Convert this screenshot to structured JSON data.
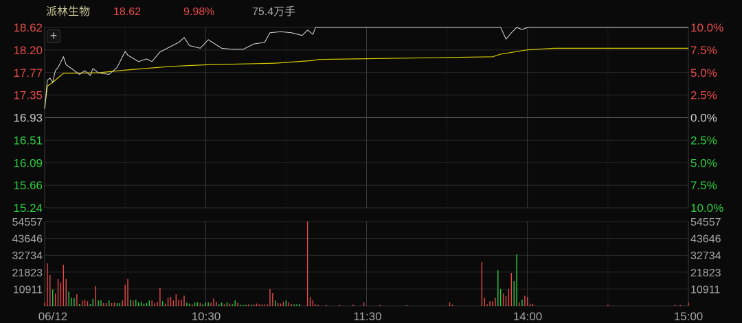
{
  "header": {
    "stock_name": "派林生物",
    "price": "18.62",
    "change_pct": "9.98%",
    "volume": "75.4万手"
  },
  "crosshair_button": {
    "icon": "plus-icon",
    "label": "+"
  },
  "colors": {
    "background": "#0a0a0a",
    "grid": "#2c2c2c",
    "up": "#e84a4a",
    "down": "#2ecc40",
    "price_line": "#dddddd",
    "avg_line": "#d9cc00",
    "name": "#c9c79a",
    "neutral": "#a8a8a8"
  },
  "chart_data": [
    {
      "type": "line",
      "panel": "price",
      "ylim": [
        15.24,
        18.62
      ],
      "grid": true,
      "y_ticks_left": [
        "18.62",
        "18.20",
        "17.77",
        "17.35",
        "16.93",
        "16.51",
        "16.09",
        "15.66",
        "15.24"
      ],
      "y_ticks_right": [
        "10.0%",
        "7.5%",
        "5.0%",
        "2.5%",
        "0.0%",
        "2.5%",
        "5.0%",
        "7.5%",
        "10.0%"
      ],
      "prev_close": 16.93,
      "x_ticks": [
        "06/12",
        "10:30",
        "11:30",
        "14:00",
        "15:00"
      ],
      "series": [
        {
          "key": "price",
          "points": [
            [
              "09:30",
              17.1
            ],
            [
              "09:31",
              17.63
            ],
            [
              "09:32",
              17.67
            ],
            [
              "09:33",
              17.59
            ],
            [
              "09:34",
              17.81
            ],
            [
              "09:35",
              17.87
            ],
            [
              "09:37",
              18.07
            ],
            [
              "09:38",
              17.92
            ],
            [
              "09:40",
              17.85
            ],
            [
              "09:43",
              17.74
            ],
            [
              "09:45",
              17.81
            ],
            [
              "09:47",
              17.72
            ],
            [
              "09:48",
              17.85
            ],
            [
              "09:50",
              17.77
            ],
            [
              "09:54",
              17.74
            ],
            [
              "09:57",
              17.87
            ],
            [
              "10:00",
              18.17
            ],
            [
              "10:01",
              18.1
            ],
            [
              "10:05",
              17.98
            ],
            [
              "10:08",
              18.03
            ],
            [
              "10:10",
              17.98
            ],
            [
              "10:13",
              18.16
            ],
            [
              "10:20",
              18.34
            ],
            [
              "10:22",
              18.43
            ],
            [
              "10:24",
              18.28
            ],
            [
              "10:28",
              18.23
            ],
            [
              "10:31",
              18.39
            ],
            [
              "10:36",
              18.23
            ],
            [
              "10:40",
              18.21
            ],
            [
              "10:44",
              18.21
            ],
            [
              "10:48",
              18.31
            ],
            [
              "10:52",
              18.34
            ],
            [
              "10:54",
              18.52
            ],
            [
              "10:58",
              18.54
            ],
            [
              "11:02",
              18.52
            ],
            [
              "11:06",
              18.47
            ],
            [
              "11:08",
              18.57
            ],
            [
              "11:10",
              18.49
            ],
            [
              "11:11",
              18.62
            ],
            [
              "13:50",
              18.62
            ],
            [
              "13:52",
              18.4
            ],
            [
              "13:54",
              18.52
            ],
            [
              "13:56",
              18.62
            ],
            [
              "13:58",
              18.58
            ],
            [
              "14:00",
              18.62
            ],
            [
              "15:00",
              18.62
            ]
          ]
        },
        {
          "key": "average",
          "points": [
            [
              "09:30",
              17.1
            ],
            [
              "09:31",
              17.52
            ],
            [
              "09:33",
              17.59
            ],
            [
              "09:37",
              17.76
            ],
            [
              "09:50",
              17.77
            ],
            [
              "10:00",
              17.82
            ],
            [
              "10:17",
              17.89
            ],
            [
              "10:30",
              17.92
            ],
            [
              "10:56",
              17.95
            ],
            [
              "11:10",
              18.0
            ],
            [
              "11:12",
              18.02
            ],
            [
              "13:47",
              18.07
            ],
            [
              "13:50",
              18.12
            ],
            [
              "14:00",
              18.2
            ],
            [
              "14:10",
              18.23
            ],
            [
              "15:00",
              18.23
            ]
          ]
        }
      ]
    },
    {
      "type": "bar",
      "panel": "volume",
      "ylim": [
        0,
        54557
      ],
      "grid": true,
      "y_ticks": [
        "54557",
        "43646",
        "32734",
        "21823",
        "10911"
      ],
      "bars": [
        [
          "09:30",
          2000,
          "up"
        ],
        [
          "09:31",
          27400,
          "up"
        ],
        [
          "09:32",
          20000,
          "up"
        ],
        [
          "09:33",
          10600,
          "down"
        ],
        [
          "09:34",
          8000,
          "up"
        ],
        [
          "09:35",
          17300,
          "up"
        ],
        [
          "09:36",
          15000,
          "up"
        ],
        [
          "09:37",
          26600,
          "up"
        ],
        [
          "09:38",
          17300,
          "up"
        ],
        [
          "09:39",
          9300,
          "down"
        ],
        [
          "09:40",
          5300,
          "down"
        ],
        [
          "09:41",
          4900,
          "down"
        ],
        [
          "09:42",
          7500,
          "up"
        ],
        [
          "09:43",
          1300,
          "down"
        ],
        [
          "09:44",
          3500,
          "up"
        ],
        [
          "09:45",
          4000,
          "up"
        ],
        [
          "09:46",
          3000,
          "up"
        ],
        [
          "09:47",
          1300,
          "down"
        ],
        [
          "09:48",
          4400,
          "down"
        ],
        [
          "09:49",
          12900,
          "up"
        ],
        [
          "09:50",
          3500,
          "down"
        ],
        [
          "09:51",
          3500,
          "down"
        ],
        [
          "09:52",
          1800,
          "up"
        ],
        [
          "09:53",
          1800,
          "up"
        ],
        [
          "09:54",
          3500,
          "down"
        ],
        [
          "09:55",
          1800,
          "up"
        ],
        [
          "09:56",
          2200,
          "up"
        ],
        [
          "09:57",
          1800,
          "down"
        ],
        [
          "09:58",
          1800,
          "down"
        ],
        [
          "09:59",
          3500,
          "up"
        ],
        [
          "10:00",
          13700,
          "up"
        ],
        [
          "10:01",
          17300,
          "up"
        ],
        [
          "10:02",
          4000,
          "down"
        ],
        [
          "10:03",
          3500,
          "up"
        ],
        [
          "10:04",
          4000,
          "down"
        ],
        [
          "10:05",
          2200,
          "down"
        ],
        [
          "10:06",
          2700,
          "down"
        ],
        [
          "10:07",
          1500,
          "down"
        ],
        [
          "10:08",
          1800,
          "down"
        ],
        [
          "10:09",
          3500,
          "down"
        ],
        [
          "10:10",
          3500,
          "up"
        ],
        [
          "10:11",
          1800,
          "up"
        ],
        [
          "10:12",
          2700,
          "up"
        ],
        [
          "10:13",
          11500,
          "up"
        ],
        [
          "10:14",
          3000,
          "down"
        ],
        [
          "10:15",
          1500,
          "up"
        ],
        [
          "10:16",
          5300,
          "up"
        ],
        [
          "10:17",
          5800,
          "up"
        ],
        [
          "10:18",
          3500,
          "up"
        ],
        [
          "10:19",
          7500,
          "up"
        ],
        [
          "10:20",
          4000,
          "up"
        ],
        [
          "10:21",
          4000,
          "up"
        ],
        [
          "10:22",
          6600,
          "up"
        ],
        [
          "10:23",
          2000,
          "down"
        ],
        [
          "10:24",
          1500,
          "down"
        ],
        [
          "10:25",
          1000,
          "up"
        ],
        [
          "10:26",
          2200,
          "down"
        ],
        [
          "10:27",
          2200,
          "down"
        ],
        [
          "10:28",
          1800,
          "up"
        ],
        [
          "10:29",
          1000,
          "down"
        ],
        [
          "10:30",
          2200,
          "down"
        ],
        [
          "10:31",
          2200,
          "down"
        ],
        [
          "10:32",
          2000,
          "up"
        ],
        [
          "10:33",
          4700,
          "up"
        ],
        [
          "10:34",
          2700,
          "up"
        ],
        [
          "10:35",
          1000,
          "down"
        ],
        [
          "10:36",
          2200,
          "down"
        ],
        [
          "10:37",
          1000,
          "up"
        ],
        [
          "10:38",
          2200,
          "down"
        ],
        [
          "10:39",
          1500,
          "up"
        ],
        [
          "10:40",
          1000,
          "down"
        ],
        [
          "10:41",
          3500,
          "down"
        ],
        [
          "10:42",
          2000,
          "up"
        ],
        [
          "10:43",
          700,
          "down"
        ],
        [
          "10:44",
          600,
          "down"
        ],
        [
          "10:45",
          700,
          "down"
        ],
        [
          "10:46",
          1000,
          "up"
        ],
        [
          "10:47",
          700,
          "down"
        ],
        [
          "10:48",
          1000,
          "up"
        ],
        [
          "10:49",
          1500,
          "up"
        ],
        [
          "10:50",
          1000,
          "up"
        ],
        [
          "10:51",
          900,
          "up"
        ],
        [
          "10:52",
          900,
          "up"
        ],
        [
          "10:53",
          1000,
          "up"
        ],
        [
          "10:54",
          11000,
          "up"
        ],
        [
          "10:55",
          8400,
          "up"
        ],
        [
          "10:56",
          3500,
          "down"
        ],
        [
          "10:57",
          1800,
          "up"
        ],
        [
          "10:58",
          1500,
          "up"
        ],
        [
          "10:59",
          2700,
          "up"
        ],
        [
          "11:00",
          3500,
          "down"
        ],
        [
          "11:01",
          2200,
          "up"
        ],
        [
          "11:02",
          1300,
          "up"
        ],
        [
          "11:03",
          1000,
          "down"
        ],
        [
          "11:04",
          1000,
          "down"
        ],
        [
          "11:05",
          1300,
          "down"
        ],
        [
          "11:08",
          54557,
          "up"
        ],
        [
          "11:09",
          5700,
          "up"
        ],
        [
          "11:10",
          3500,
          "up"
        ],
        [
          "11:11",
          900,
          "up"
        ],
        [
          "11:12",
          600,
          "up"
        ],
        [
          "11:15",
          500,
          "up"
        ],
        [
          "11:20",
          500,
          "up"
        ],
        [
          "11:25",
          800,
          "up"
        ],
        [
          "11:29",
          2200,
          "up"
        ],
        [
          "13:05",
          500,
          "up"
        ],
        [
          "13:15",
          500,
          "up"
        ],
        [
          "13:31",
          2200,
          "up"
        ],
        [
          "13:32",
          700,
          "up"
        ],
        [
          "13:43",
          28400,
          "up"
        ],
        [
          "13:44",
          5300,
          "up"
        ],
        [
          "13:45",
          900,
          "up"
        ],
        [
          "13:46",
          3000,
          "up"
        ],
        [
          "13:47",
          3000,
          "up"
        ],
        [
          "13:48",
          5300,
          "up"
        ],
        [
          "13:49",
          23000,
          "down"
        ],
        [
          "13:50",
          11000,
          "down"
        ],
        [
          "13:51",
          8000,
          "up"
        ],
        [
          "13:52",
          6200,
          "up"
        ],
        [
          "13:53",
          11000,
          "up"
        ],
        [
          "13:54",
          21300,
          "up"
        ],
        [
          "13:55",
          16000,
          "down"
        ],
        [
          "13:56",
          33300,
          "down"
        ],
        [
          "13:57",
          2200,
          "up"
        ],
        [
          "13:58",
          4000,
          "down"
        ],
        [
          "13:59",
          6600,
          "up"
        ],
        [
          "14:00",
          5700,
          "up"
        ],
        [
          "14:01",
          1500,
          "up"
        ],
        [
          "14:02",
          1300,
          "up"
        ],
        [
          "14:30",
          600,
          "up"
        ],
        [
          "14:55",
          700,
          "up"
        ],
        [
          "14:57",
          500,
          "up"
        ],
        [
          "15:00",
          2200,
          "up"
        ]
      ]
    }
  ]
}
